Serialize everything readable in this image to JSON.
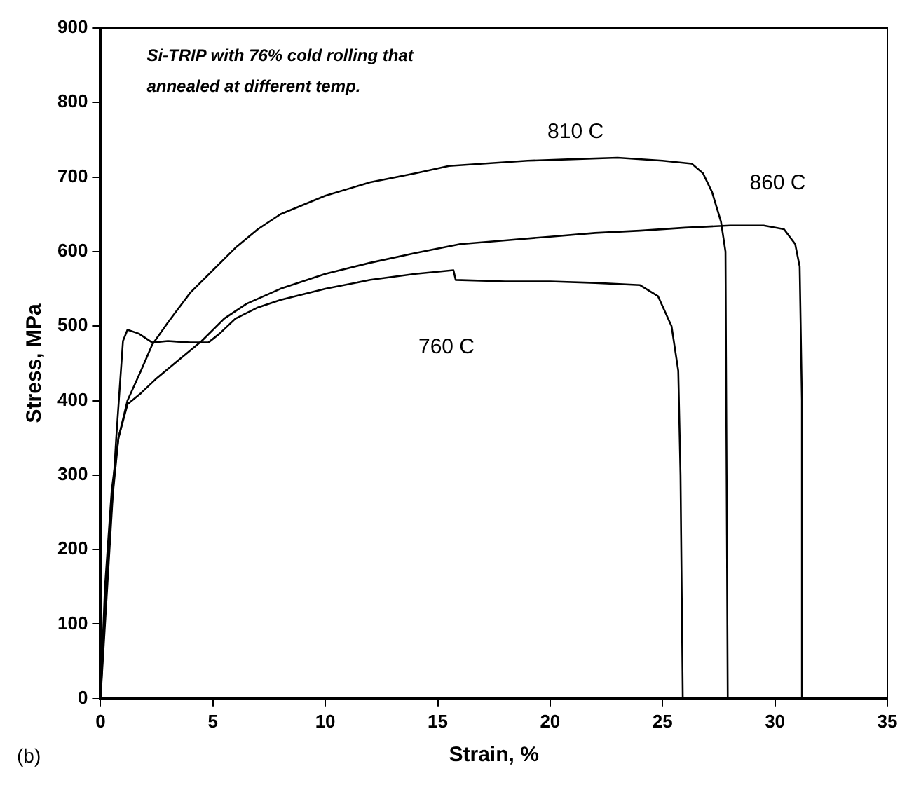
{
  "chart_data": {
    "type": "line",
    "xlabel": "Strain, %",
    "ylabel": "Stress, MPa",
    "annotations": [
      "Si-TRIP with 76% cold rolling that annealed at different temp.",
      "(b)"
    ],
    "xlim": [
      0,
      35
    ],
    "xticks": [
      0,
      5,
      10,
      15,
      20,
      25,
      30,
      35
    ],
    "ylim": [
      0,
      900
    ],
    "yticks": [
      0,
      100,
      200,
      300,
      400,
      500,
      600,
      700,
      800,
      900
    ],
    "grid": false,
    "legend": false,
    "marker": "none",
    "line_style": "solid",
    "series": [
      {
        "name": "760 C",
        "color": "#000000",
        "x": [
          0,
          0.3,
          0.7,
          1.0,
          1.2,
          1.7,
          2.3,
          3,
          4,
          4.8,
          5.3,
          6,
          7,
          8,
          10,
          12,
          14,
          15.7,
          15.8,
          18,
          20,
          22,
          24,
          24.8,
          25.4,
          25.7,
          25.8,
          25.9
        ],
        "values": [
          0,
          150,
          350,
          480,
          495,
          490,
          478,
          480,
          478,
          478,
          490,
          510,
          525,
          535,
          550,
          562,
          570,
          575,
          562,
          560,
          560,
          558,
          555,
          540,
          500,
          440,
          300,
          0
        ]
      },
      {
        "name": "810 C",
        "color": "#000000",
        "x": [
          0,
          0.2,
          0.5,
          0.8,
          1.2,
          1.8,
          2.3,
          3,
          4,
          5,
          6,
          7,
          8,
          10,
          12,
          14,
          15.5,
          17,
          19,
          21,
          23,
          25,
          26.3,
          26.8,
          27.2,
          27.6,
          27.8,
          27.85,
          27.9
        ],
        "values": [
          0,
          150,
          280,
          350,
          400,
          440,
          475,
          505,
          545,
          575,
          605,
          630,
          650,
          675,
          693,
          705,
          715,
          718,
          722,
          724,
          726,
          722,
          718,
          705,
          680,
          640,
          600,
          300,
          0
        ]
      },
      {
        "name": "860 C",
        "color": "#000000",
        "x": [
          0,
          0.2,
          0.5,
          0.8,
          1.2,
          1.8,
          2.5,
          3.5,
          4.5,
          5.5,
          6.5,
          8,
          10,
          12,
          14,
          16,
          18,
          20,
          22,
          24,
          26,
          28,
          29.5,
          30.4,
          30.9,
          31.1,
          31.2,
          31.2
        ],
        "values": [
          0,
          120,
          260,
          350,
          395,
          410,
          430,
          455,
          480,
          510,
          530,
          550,
          570,
          585,
          598,
          610,
          615,
          620,
          625,
          628,
          632,
          635,
          635,
          630,
          610,
          580,
          400,
          0
        ]
      }
    ]
  }
}
